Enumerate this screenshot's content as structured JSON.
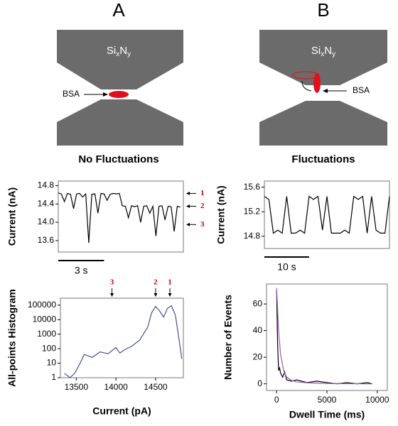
{
  "figure": {
    "panels": [
      {
        "letter": "A",
        "material": {
          "base1": "Si",
          "sub1": "x",
          "base2": "N",
          "sub2": "y"
        },
        "protein": "BSA",
        "caption": "No Fluctuations"
      },
      {
        "letter": "B",
        "material": {
          "base1": "Si",
          "sub1": "x",
          "base2": "N",
          "sub2": "y"
        },
        "protein": "BSA",
        "caption": "Fluctuations"
      }
    ]
  },
  "chart_data": [
    {
      "type": "line",
      "ylabel": "Current (nA)",
      "x": [
        0,
        0.2,
        0.4,
        0.6,
        0.8,
        1,
        1.2,
        1.4,
        1.6,
        1.8,
        2,
        2.2,
        2.4,
        2.6,
        2.8,
        3,
        3.2,
        3.4,
        3.6,
        3.8,
        4,
        4.2,
        4.4,
        4.6,
        4.8,
        5,
        5.2,
        5.4,
        5.6,
        5.8,
        6,
        6.2,
        6.4,
        6.6,
        6.8,
        7,
        7.2,
        7.4,
        7.6,
        7.8,
        8
      ],
      "series": [
        {
          "color": "#000000",
          "values": [
            14.64,
            14.62,
            14.45,
            14.63,
            14.61,
            14.3,
            14.62,
            14.63,
            14.55,
            14.62,
            13.55,
            14.61,
            14.62,
            14.2,
            14.63,
            14.62,
            14.48,
            14.61,
            14.63,
            14.62,
            14.63,
            14.36,
            14.35,
            14.1,
            14.36,
            14.34,
            14.36,
            14.0,
            14.35,
            14.36,
            14.2,
            14.35,
            13.7,
            14.35,
            14.36,
            14.05,
            14.35,
            14.34,
            13.8,
            14.35,
            14.33
          ]
        }
      ],
      "xlim": [
        0,
        8.2
      ],
      "ylim": [
        13.35,
        14.9
      ],
      "yticks": [
        13.6,
        {
          "value": 14,
          "label": "14.0"
        },
        14.4,
        14.8
      ],
      "scale_bar": {
        "length": 3,
        "label": "3 s"
      },
      "level_markers": [
        {
          "label": "1",
          "value": 14.63
        },
        {
          "label": "2",
          "value": 14.35
        },
        {
          "label": "3",
          "value": 13.95
        }
      ]
    },
    {
      "type": "line",
      "ylabel": "Current (nA)",
      "x": [
        0,
        1,
        2,
        3,
        4,
        5,
        6,
        7,
        8,
        9,
        10,
        11,
        12,
        13,
        14,
        15,
        16,
        17,
        18,
        19,
        20,
        21,
        22,
        23,
        24,
        25,
        26,
        27,
        28
      ],
      "series": [
        {
          "color": "#000000",
          "values": [
            15.45,
            15.4,
            14.85,
            14.9,
            14.85,
            15.45,
            14.85,
            14.85,
            14.9,
            14.85,
            15.45,
            15.4,
            15.45,
            14.9,
            15.45,
            14.85,
            14.85,
            14.85,
            14.9,
            14.85,
            15.45,
            15.4,
            15.45,
            14.85,
            15.45,
            14.9,
            14.85,
            14.85,
            15.45
          ]
        }
      ],
      "xlim": [
        0,
        28
      ],
      "ylim": [
        14.6,
        15.7
      ],
      "yticks": [
        14.8,
        15.2,
        15.6
      ],
      "scale_bar": {
        "length": 10,
        "label": "10 s"
      }
    },
    {
      "type": "line",
      "ylabel": "All-points Histogram",
      "xlabel": "Current (pA)",
      "log_y": true,
      "x": [
        13350,
        13420,
        13480,
        13540,
        13600,
        13700,
        13800,
        13900,
        14000,
        14050,
        14100,
        14200,
        14300,
        14400,
        14450,
        14500,
        14550,
        14600,
        14650,
        14700,
        14750,
        14800,
        14830
      ],
      "series": [
        {
          "color": "#4b4b9a",
          "values": [
            2,
            1,
            2,
            8,
            40,
            25,
            60,
            45,
            120,
            50,
            80,
            150,
            400,
            3000,
            30000,
            80000,
            40000,
            15000,
            60000,
            90000,
            20000,
            300,
            20
          ]
        }
      ],
      "xlim": [
        13300,
        14850
      ],
      "ylim": [
        1,
        300000
      ],
      "xticks": [
        13500,
        14000,
        14500
      ],
      "yticks": [
        1,
        10,
        100,
        1000,
        10000,
        100000
      ],
      "peak_markers": [
        {
          "label": "3",
          "value": 13950
        },
        {
          "label": "2",
          "value": 14500
        },
        {
          "label": "1",
          "value": 14680
        }
      ]
    },
    {
      "type": "line",
      "ylabel": "Number of Events",
      "xlabel": "Dwell Time (ms)",
      "series": [
        {
          "color": "#000000",
          "x": [
            0,
            100,
            200,
            300,
            400,
            600,
            800,
            1000,
            1500,
            2000,
            3000,
            4000,
            5000,
            6000,
            7000,
            8000,
            9000,
            9500
          ],
          "values": [
            70,
            30,
            10,
            12,
            8,
            5,
            9,
            3,
            2,
            3,
            1,
            2,
            1,
            0,
            1,
            0,
            1,
            0
          ]
        },
        {
          "color": "#9b59b6",
          "x": [
            0,
            200,
            400,
            700,
            1000,
            1500,
            2000,
            3000,
            5000,
            7000,
            9500
          ],
          "values": [
            72,
            40,
            22,
            10,
            5,
            2.5,
            1.5,
            0.8,
            0.3,
            0.1,
            0
          ]
        }
      ],
      "xlim": [
        -1000,
        11000
      ],
      "ylim": [
        -5,
        75
      ],
      "xticks": [
        0,
        5000,
        10000
      ],
      "yticks": [
        0,
        20,
        40,
        60
      ]
    }
  ]
}
